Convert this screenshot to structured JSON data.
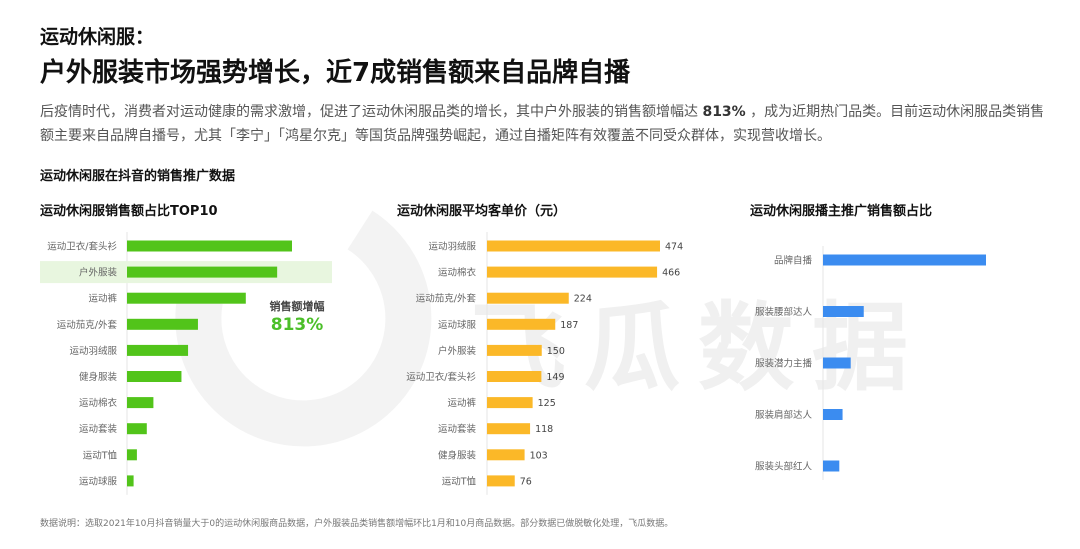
{
  "header": {
    "kicker": "运动休闲服：",
    "title": "户外服装市场强势增长，近7成销售额来自品牌自播"
  },
  "intro": {
    "part1": "后疫情时代，消费者对运动健康的需求激增，促进了运动休闲服品类的增长，其中户外服装的销售额增幅达 ",
    "highlight": "813%",
    "part2": " ，成为近期热门品类。目前运动休闲服品类销售额主要来自品牌自播号，尤其「李宁」「鸿星尔克」等国货品牌强势崛起，通过自播矩阵有效覆盖不同受众群体，实现营收增长。"
  },
  "section_title": "运动休闲服在抖音的销售推广数据",
  "callout": {
    "label": "销售额增幅",
    "value": "813%"
  },
  "watermark": "飞瓜数据",
  "footnote": "数据说明：选取2021年10月抖音销量大于0的运动休闲服商品数据，户外服装品类销售额增幅环比1月和10月商品数据。部分数据已做脱敏化处理，飞瓜数据。",
  "colors": {
    "green": "#52c41a",
    "green_highlight": "#e8f6df",
    "orange": "#fbb828",
    "blue": "#3b8cf0"
  },
  "chart_data": [
    {
      "type": "bar",
      "orientation": "horizontal",
      "title": "运动休闲服销售额占比TOP10",
      "categories": [
        "运动卫衣/套头衫",
        "户外服装",
        "运动裤",
        "运动茄克/外套",
        "运动羽绒服",
        "健身服装",
        "运动棉衣",
        "运动套装",
        "运动T恤",
        "运动球服"
      ],
      "values": [
        100,
        91,
        72,
        43,
        37,
        33,
        16,
        12,
        6,
        4
      ],
      "highlight_category": "户外服装",
      "value_labels": false
    },
    {
      "type": "bar",
      "orientation": "horizontal",
      "title": "运动休闲服平均客单价（元）",
      "categories": [
        "运动羽绒服",
        "运动棉衣",
        "运动茄克/外套",
        "运动球服",
        "户外服装",
        "运动卫衣/套头衫",
        "运动裤",
        "运动套装",
        "健身服装",
        "运动T恤"
      ],
      "values": [
        474,
        466,
        224,
        187,
        150,
        149,
        125,
        118,
        103,
        76
      ],
      "value_labels": true
    },
    {
      "type": "bar",
      "orientation": "horizontal",
      "title": "运动休闲服播主推广销售额占比",
      "categories": [
        "品牌自播",
        "服装腰部达人",
        "服装潜力主播",
        "服装肩部达人",
        "服装头部红人"
      ],
      "values": [
        100,
        25,
        17,
        12,
        10
      ],
      "value_labels": false
    }
  ]
}
